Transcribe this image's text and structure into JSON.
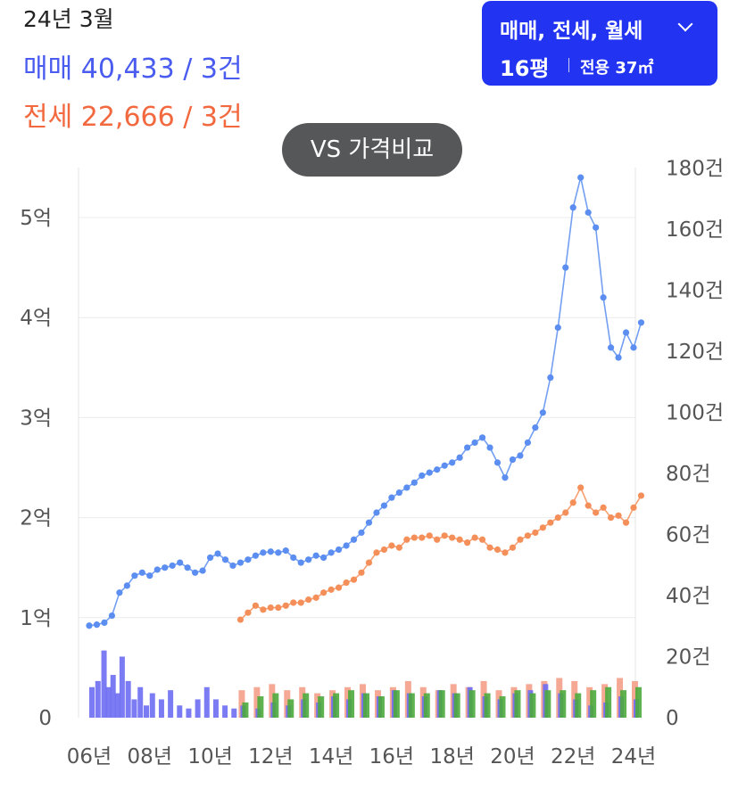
{
  "header": {
    "date": "24년 3월",
    "sale": "매매 40,433 / 3건",
    "rent": "전세 22,666 / 3건"
  },
  "filter": {
    "types": "매매, 전세, 월세",
    "size": "16평",
    "area": "전용 37㎡"
  },
  "compare_button": "VS 가격비교",
  "colors": {
    "sale": "#5b8ef0",
    "rent": "#f58f5a",
    "volume_sale": "#6d6df2",
    "volume_rent": "#f4a08a",
    "volume_monthly": "#4caa3c",
    "button": "#2234f2"
  },
  "chart_data": {
    "type": "line",
    "x_ticks": [
      "06년",
      "08년",
      "10년",
      "12년",
      "14년",
      "16년",
      "18년",
      "20년",
      "22년",
      "24년"
    ],
    "y_left_ticks": [
      "0",
      "1억",
      "2억",
      "3억",
      "4억",
      "5억"
    ],
    "y_left_range": [
      0,
      5.5
    ],
    "y_left_unit": "억",
    "y_right_ticks": [
      "0",
      "20건",
      "40건",
      "60건",
      "80건",
      "100건",
      "120건",
      "140건",
      "160건",
      "180건"
    ],
    "y_right_range": [
      0,
      180
    ],
    "series": [
      {
        "kind": "sale-price",
        "points": [
          [
            2006.0,
            0.92
          ],
          [
            2006.25,
            0.93
          ],
          [
            2006.5,
            0.95
          ],
          [
            2006.75,
            1.02
          ],
          [
            2007.0,
            1.25
          ],
          [
            2007.25,
            1.32
          ],
          [
            2007.5,
            1.42
          ],
          [
            2007.75,
            1.45
          ],
          [
            2008.0,
            1.42
          ],
          [
            2008.25,
            1.48
          ],
          [
            2008.5,
            1.5
          ],
          [
            2008.75,
            1.52
          ],
          [
            2009.0,
            1.55
          ],
          [
            2009.25,
            1.5
          ],
          [
            2009.5,
            1.45
          ],
          [
            2009.75,
            1.47
          ],
          [
            2010.0,
            1.6
          ],
          [
            2010.25,
            1.64
          ],
          [
            2010.5,
            1.58
          ],
          [
            2010.75,
            1.52
          ],
          [
            2011.0,
            1.55
          ],
          [
            2011.25,
            1.58
          ],
          [
            2011.5,
            1.62
          ],
          [
            2011.75,
            1.65
          ],
          [
            2012.0,
            1.66
          ],
          [
            2012.25,
            1.65
          ],
          [
            2012.5,
            1.67
          ],
          [
            2012.75,
            1.6
          ],
          [
            2013.0,
            1.55
          ],
          [
            2013.25,
            1.58
          ],
          [
            2013.5,
            1.62
          ],
          [
            2013.75,
            1.6
          ],
          [
            2014.0,
            1.65
          ],
          [
            2014.25,
            1.68
          ],
          [
            2014.5,
            1.72
          ],
          [
            2014.75,
            1.78
          ],
          [
            2015.0,
            1.85
          ],
          [
            2015.25,
            1.95
          ],
          [
            2015.5,
            2.05
          ],
          [
            2015.75,
            2.12
          ],
          [
            2016.0,
            2.2
          ],
          [
            2016.25,
            2.25
          ],
          [
            2016.5,
            2.3
          ],
          [
            2016.75,
            2.35
          ],
          [
            2017.0,
            2.42
          ],
          [
            2017.25,
            2.45
          ],
          [
            2017.5,
            2.48
          ],
          [
            2017.75,
            2.52
          ],
          [
            2018.0,
            2.55
          ],
          [
            2018.25,
            2.6
          ],
          [
            2018.5,
            2.7
          ],
          [
            2018.75,
            2.75
          ],
          [
            2019.0,
            2.8
          ],
          [
            2019.25,
            2.7
          ],
          [
            2019.5,
            2.55
          ],
          [
            2019.75,
            2.4
          ],
          [
            2020.0,
            2.58
          ],
          [
            2020.25,
            2.62
          ],
          [
            2020.5,
            2.75
          ],
          [
            2020.75,
            2.9
          ],
          [
            2021.0,
            3.05
          ],
          [
            2021.25,
            3.4
          ],
          [
            2021.5,
            3.9
          ],
          [
            2021.75,
            4.5
          ],
          [
            2022.0,
            5.1
          ],
          [
            2022.25,
            5.4
          ],
          [
            2022.5,
            5.05
          ],
          [
            2022.75,
            4.9
          ],
          [
            2023.0,
            4.2
          ],
          [
            2023.25,
            3.7
          ],
          [
            2023.5,
            3.6
          ],
          [
            2023.75,
            3.85
          ],
          [
            2024.0,
            3.7
          ],
          [
            2024.25,
            3.95
          ]
        ]
      },
      {
        "kind": "jeonse-price",
        "points": [
          [
            2011.0,
            0.98
          ],
          [
            2011.25,
            1.05
          ],
          [
            2011.5,
            1.12
          ],
          [
            2011.75,
            1.08
          ],
          [
            2012.0,
            1.1
          ],
          [
            2012.25,
            1.1
          ],
          [
            2012.5,
            1.12
          ],
          [
            2012.75,
            1.15
          ],
          [
            2013.0,
            1.15
          ],
          [
            2013.25,
            1.18
          ],
          [
            2013.5,
            1.2
          ],
          [
            2013.75,
            1.25
          ],
          [
            2014.0,
            1.28
          ],
          [
            2014.25,
            1.3
          ],
          [
            2014.5,
            1.35
          ],
          [
            2014.75,
            1.38
          ],
          [
            2015.0,
            1.45
          ],
          [
            2015.25,
            1.55
          ],
          [
            2015.5,
            1.65
          ],
          [
            2015.75,
            1.68
          ],
          [
            2016.0,
            1.72
          ],
          [
            2016.25,
            1.7
          ],
          [
            2016.5,
            1.78
          ],
          [
            2016.75,
            1.8
          ],
          [
            2017.0,
            1.8
          ],
          [
            2017.25,
            1.82
          ],
          [
            2017.5,
            1.78
          ],
          [
            2017.75,
            1.82
          ],
          [
            2018.0,
            1.8
          ],
          [
            2018.25,
            1.78
          ],
          [
            2018.5,
            1.75
          ],
          [
            2018.75,
            1.8
          ],
          [
            2019.0,
            1.78
          ],
          [
            2019.25,
            1.7
          ],
          [
            2019.5,
            1.68
          ],
          [
            2019.75,
            1.65
          ],
          [
            2020.0,
            1.7
          ],
          [
            2020.25,
            1.78
          ],
          [
            2020.5,
            1.82
          ],
          [
            2020.75,
            1.85
          ],
          [
            2021.0,
            1.9
          ],
          [
            2021.25,
            1.95
          ],
          [
            2021.5,
            2.0
          ],
          [
            2021.75,
            2.05
          ],
          [
            2022.0,
            2.15
          ],
          [
            2022.25,
            2.3
          ],
          [
            2022.5,
            2.12
          ],
          [
            2022.75,
            2.05
          ],
          [
            2023.0,
            2.1
          ],
          [
            2023.25,
            2.0
          ],
          [
            2023.5,
            2.02
          ],
          [
            2023.75,
            1.95
          ],
          [
            2024.0,
            2.1
          ],
          [
            2024.25,
            2.22
          ]
        ]
      }
    ],
    "volume": {
      "sale": [
        [
          2006.0,
          10
        ],
        [
          2006.2,
          12
        ],
        [
          2006.4,
          22
        ],
        [
          2006.55,
          10
        ],
        [
          2006.7,
          14
        ],
        [
          2006.85,
          8
        ],
        [
          2007.0,
          20
        ],
        [
          2007.2,
          12
        ],
        [
          2007.4,
          6
        ],
        [
          2007.6,
          10
        ],
        [
          2007.8,
          4
        ],
        [
          2008.0,
          8
        ],
        [
          2008.3,
          6
        ],
        [
          2008.6,
          9
        ],
        [
          2008.9,
          4
        ],
        [
          2009.2,
          3
        ],
        [
          2009.5,
          6
        ],
        [
          2009.8,
          10
        ],
        [
          2010.1,
          6
        ],
        [
          2010.4,
          4
        ],
        [
          2010.7,
          3
        ],
        [
          2011.0,
          4
        ],
        [
          2011.5,
          3
        ],
        [
          2012.0,
          5
        ],
        [
          2012.5,
          4
        ],
        [
          2013.0,
          6
        ],
        [
          2013.5,
          5
        ],
        [
          2014.0,
          7
        ],
        [
          2014.5,
          6
        ],
        [
          2015.0,
          8
        ],
        [
          2015.5,
          7
        ],
        [
          2016.0,
          9
        ],
        [
          2016.5,
          8
        ],
        [
          2017.0,
          7
        ],
        [
          2017.5,
          9
        ],
        [
          2018.0,
          8
        ],
        [
          2018.5,
          10
        ],
        [
          2019.0,
          7
        ],
        [
          2019.5,
          6
        ],
        [
          2020.0,
          8
        ],
        [
          2020.5,
          9
        ],
        [
          2021.0,
          11
        ],
        [
          2021.5,
          8
        ],
        [
          2022.0,
          6
        ],
        [
          2022.5,
          4
        ],
        [
          2023.0,
          5
        ],
        [
          2023.5,
          7
        ],
        [
          2024.0,
          6
        ]
      ],
      "rent": [
        [
          2011.0,
          9
        ],
        [
          2011.5,
          10
        ],
        [
          2012.0,
          11
        ],
        [
          2012.5,
          9
        ],
        [
          2013.0,
          10
        ],
        [
          2013.5,
          8
        ],
        [
          2014.0,
          9
        ],
        [
          2014.5,
          10
        ],
        [
          2015.0,
          11
        ],
        [
          2015.5,
          9
        ],
        [
          2016.0,
          10
        ],
        [
          2016.5,
          12
        ],
        [
          2017.0,
          10
        ],
        [
          2017.5,
          9
        ],
        [
          2018.0,
          11
        ],
        [
          2018.5,
          10
        ],
        [
          2019.0,
          12
        ],
        [
          2019.5,
          9
        ],
        [
          2020.0,
          10
        ],
        [
          2020.5,
          11
        ],
        [
          2021.0,
          12
        ],
        [
          2021.5,
          13
        ],
        [
          2022.0,
          12
        ],
        [
          2022.5,
          10
        ],
        [
          2023.0,
          11
        ],
        [
          2023.5,
          13
        ],
        [
          2024.0,
          12
        ]
      ],
      "monthly": [
        [
          2011.0,
          5
        ],
        [
          2011.5,
          7
        ],
        [
          2012.0,
          8
        ],
        [
          2012.5,
          6
        ],
        [
          2013.0,
          8
        ],
        [
          2013.5,
          7
        ],
        [
          2014.0,
          8
        ],
        [
          2014.5,
          9
        ],
        [
          2015.0,
          8
        ],
        [
          2015.5,
          7
        ],
        [
          2016.0,
          9
        ],
        [
          2016.5,
          8
        ],
        [
          2017.0,
          8
        ],
        [
          2017.5,
          9
        ],
        [
          2018.0,
          8
        ],
        [
          2018.5,
          9
        ],
        [
          2019.0,
          8
        ],
        [
          2019.5,
          7
        ],
        [
          2020.0,
          9
        ],
        [
          2020.5,
          8
        ],
        [
          2021.0,
          9
        ],
        [
          2021.5,
          9
        ],
        [
          2022.0,
          8
        ],
        [
          2022.5,
          9
        ],
        [
          2023.0,
          10
        ],
        [
          2023.5,
          9
        ],
        [
          2024.0,
          10
        ]
      ]
    }
  }
}
